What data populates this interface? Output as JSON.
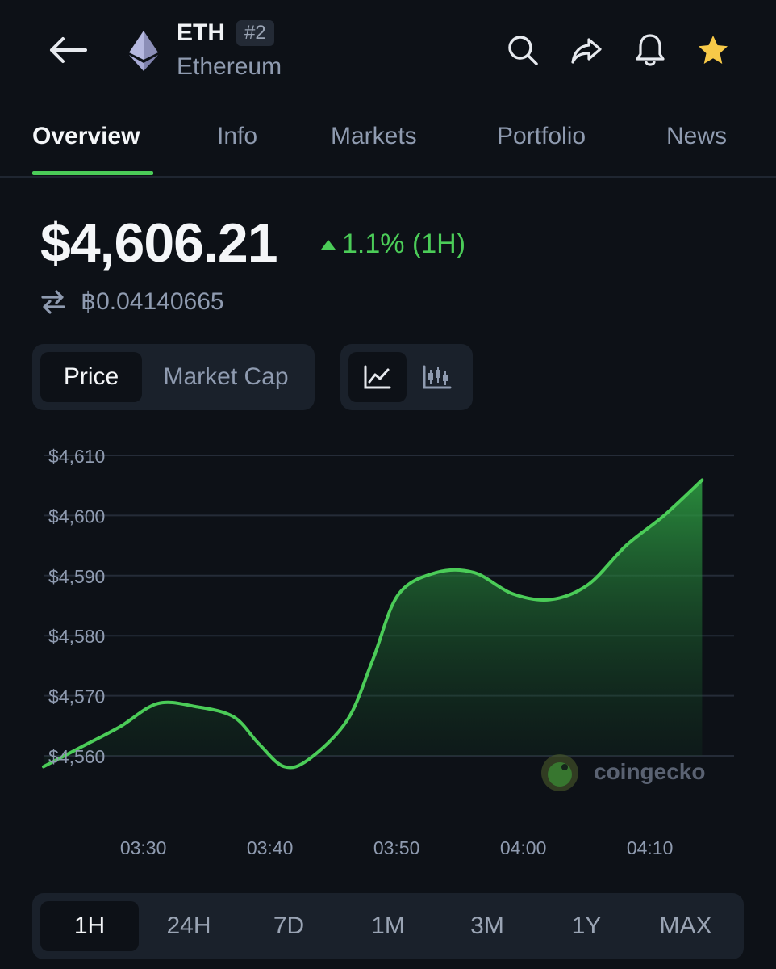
{
  "header": {
    "ticker": "ETH",
    "rank": "#2",
    "name": "Ethereum"
  },
  "tabs": [
    {
      "label": "Overview",
      "active": true
    },
    {
      "label": "Info"
    },
    {
      "label": "Markets"
    },
    {
      "label": "Portfolio"
    },
    {
      "label": "News"
    }
  ],
  "price": {
    "value": "$4,606.21",
    "change": "1.1% (1H)",
    "btc_value": "฿0.04140665"
  },
  "chart_toggle": {
    "price_label": "Price",
    "market_cap_label": "Market Cap"
  },
  "ranges": [
    "1H",
    "24H",
    "7D",
    "1M",
    "3M",
    "1Y",
    "MAX"
  ],
  "watermark": "coingecko",
  "colors": {
    "accent": "#4bcc58",
    "background": "#0d1117",
    "star": "#f7c948"
  },
  "chart_data": {
    "type": "area",
    "y_ticks": [
      "$4,610",
      "$4,600",
      "$4,590",
      "$4,580",
      "$4,570",
      "$4,560"
    ],
    "x_ticks": [
      "03:30",
      "03:40",
      "03:50",
      "04:00",
      "04:10"
    ],
    "ylim": [
      4558,
      4610
    ],
    "x_range_minutes": [
      0,
      59
    ],
    "points": [
      [
        0,
        4558.2
      ],
      [
        3,
        4561.5
      ],
      [
        6,
        4564.8
      ],
      [
        9,
        4568.7
      ],
      [
        12,
        4568.2
      ],
      [
        15,
        4566.5
      ],
      [
        17,
        4562.0
      ],
      [
        19,
        4558.2
      ],
      [
        21,
        4559.5
      ],
      [
        24,
        4566.0
      ],
      [
        26,
        4576.0
      ],
      [
        28,
        4586.8
      ],
      [
        31,
        4590.5
      ],
      [
        34,
        4590.5
      ],
      [
        37,
        4587.0
      ],
      [
        40,
        4586.0
      ],
      [
        43,
        4588.5
      ],
      [
        46,
        4595.0
      ],
      [
        49,
        4600.0
      ],
      [
        52,
        4605.9
      ]
    ],
    "grid": true,
    "series_color": "#4bcc58"
  }
}
